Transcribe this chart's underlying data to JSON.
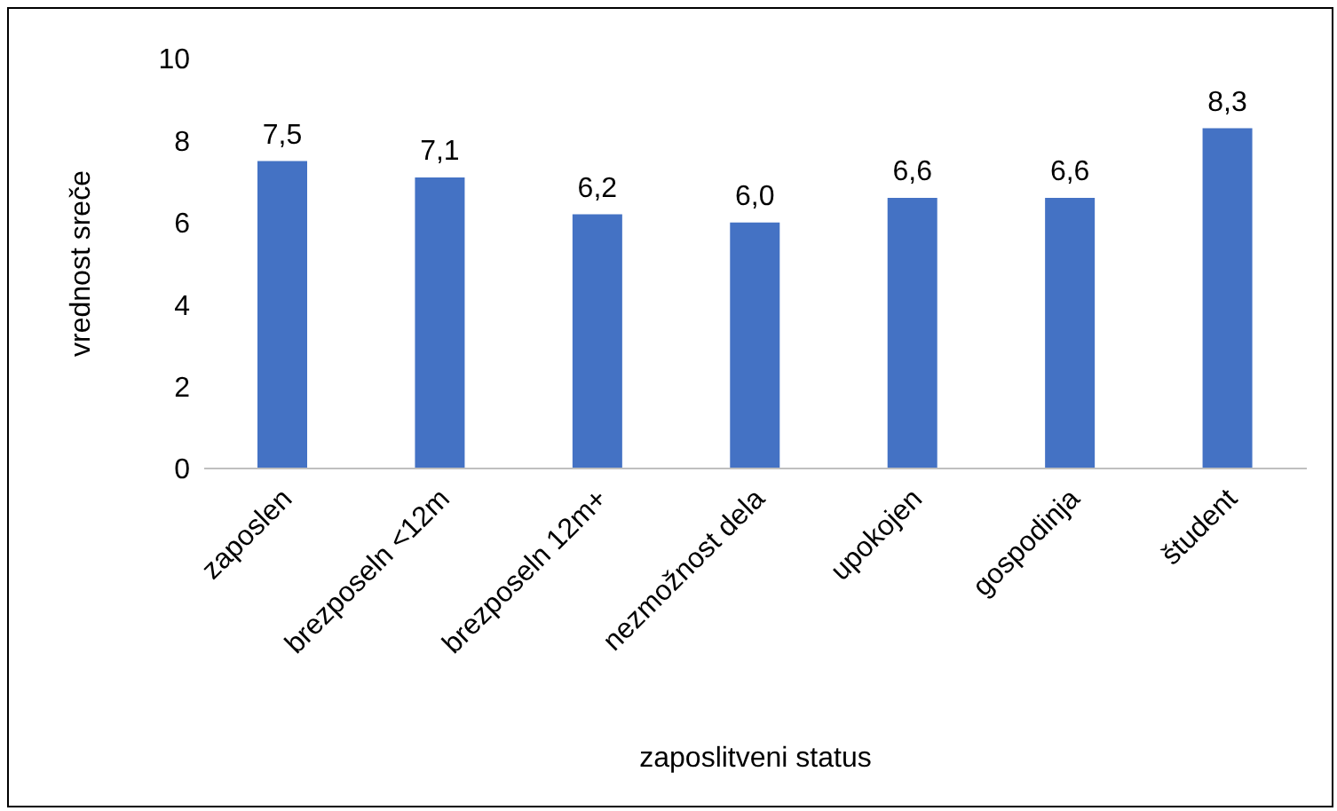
{
  "chart_data": {
    "type": "bar",
    "xlabel": "zaposlitveni status",
    "ylabel": "vrednost sreče",
    "categories": [
      "zaposlen",
      "brezposeln <12m",
      "brezposeln 12m+",
      "nezmožnost dela",
      "upokojen",
      "gospodinja",
      "študent"
    ],
    "values": [
      7.5,
      7.1,
      6.2,
      6.0,
      6.6,
      6.6,
      8.3
    ],
    "value_labels": [
      "7,5",
      "7,1",
      "6,2",
      "6,0",
      "6,6",
      "6,6",
      "8,3"
    ],
    "color": "#4472c4",
    "ylim": [
      0,
      10
    ],
    "yticks": [
      0,
      2,
      4,
      6,
      8,
      10
    ],
    "grid": false
  }
}
